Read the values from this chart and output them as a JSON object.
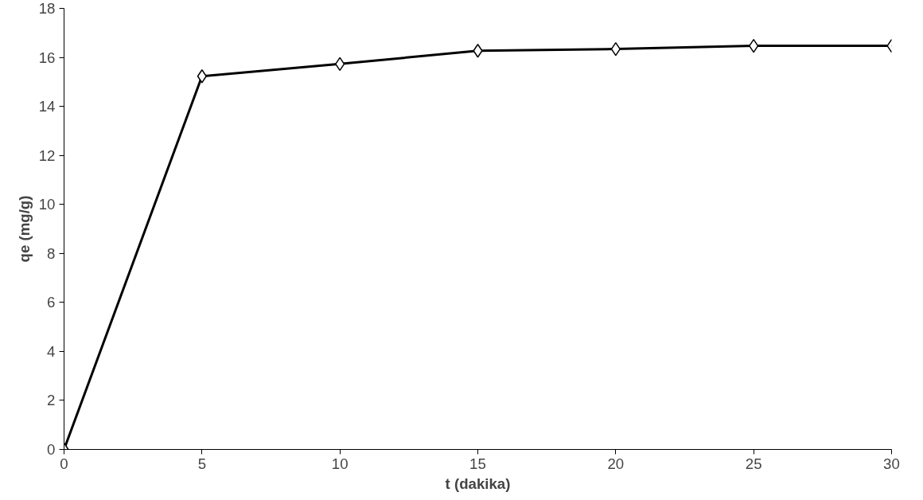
{
  "chart_data": {
    "type": "line",
    "xlabel": "t (dakika)",
    "ylabel": "qe (mg/g)",
    "x": [
      0,
      5,
      10,
      15,
      20,
      25,
      30
    ],
    "series": [
      {
        "color": "#000000",
        "values": [
          0,
          15.23,
          15.73,
          16.27,
          16.34,
          16.47,
          16.47
        ]
      }
    ],
    "xlim": [
      0,
      30
    ],
    "xticks": [
      0,
      5,
      10,
      15,
      20,
      25,
      30
    ],
    "ylim": [
      0,
      18
    ],
    "yticks": [
      0,
      2,
      4,
      6,
      8,
      10,
      12,
      14,
      16,
      18
    ],
    "grid": false,
    "marker": "diamond",
    "line_style": "solid"
  }
}
